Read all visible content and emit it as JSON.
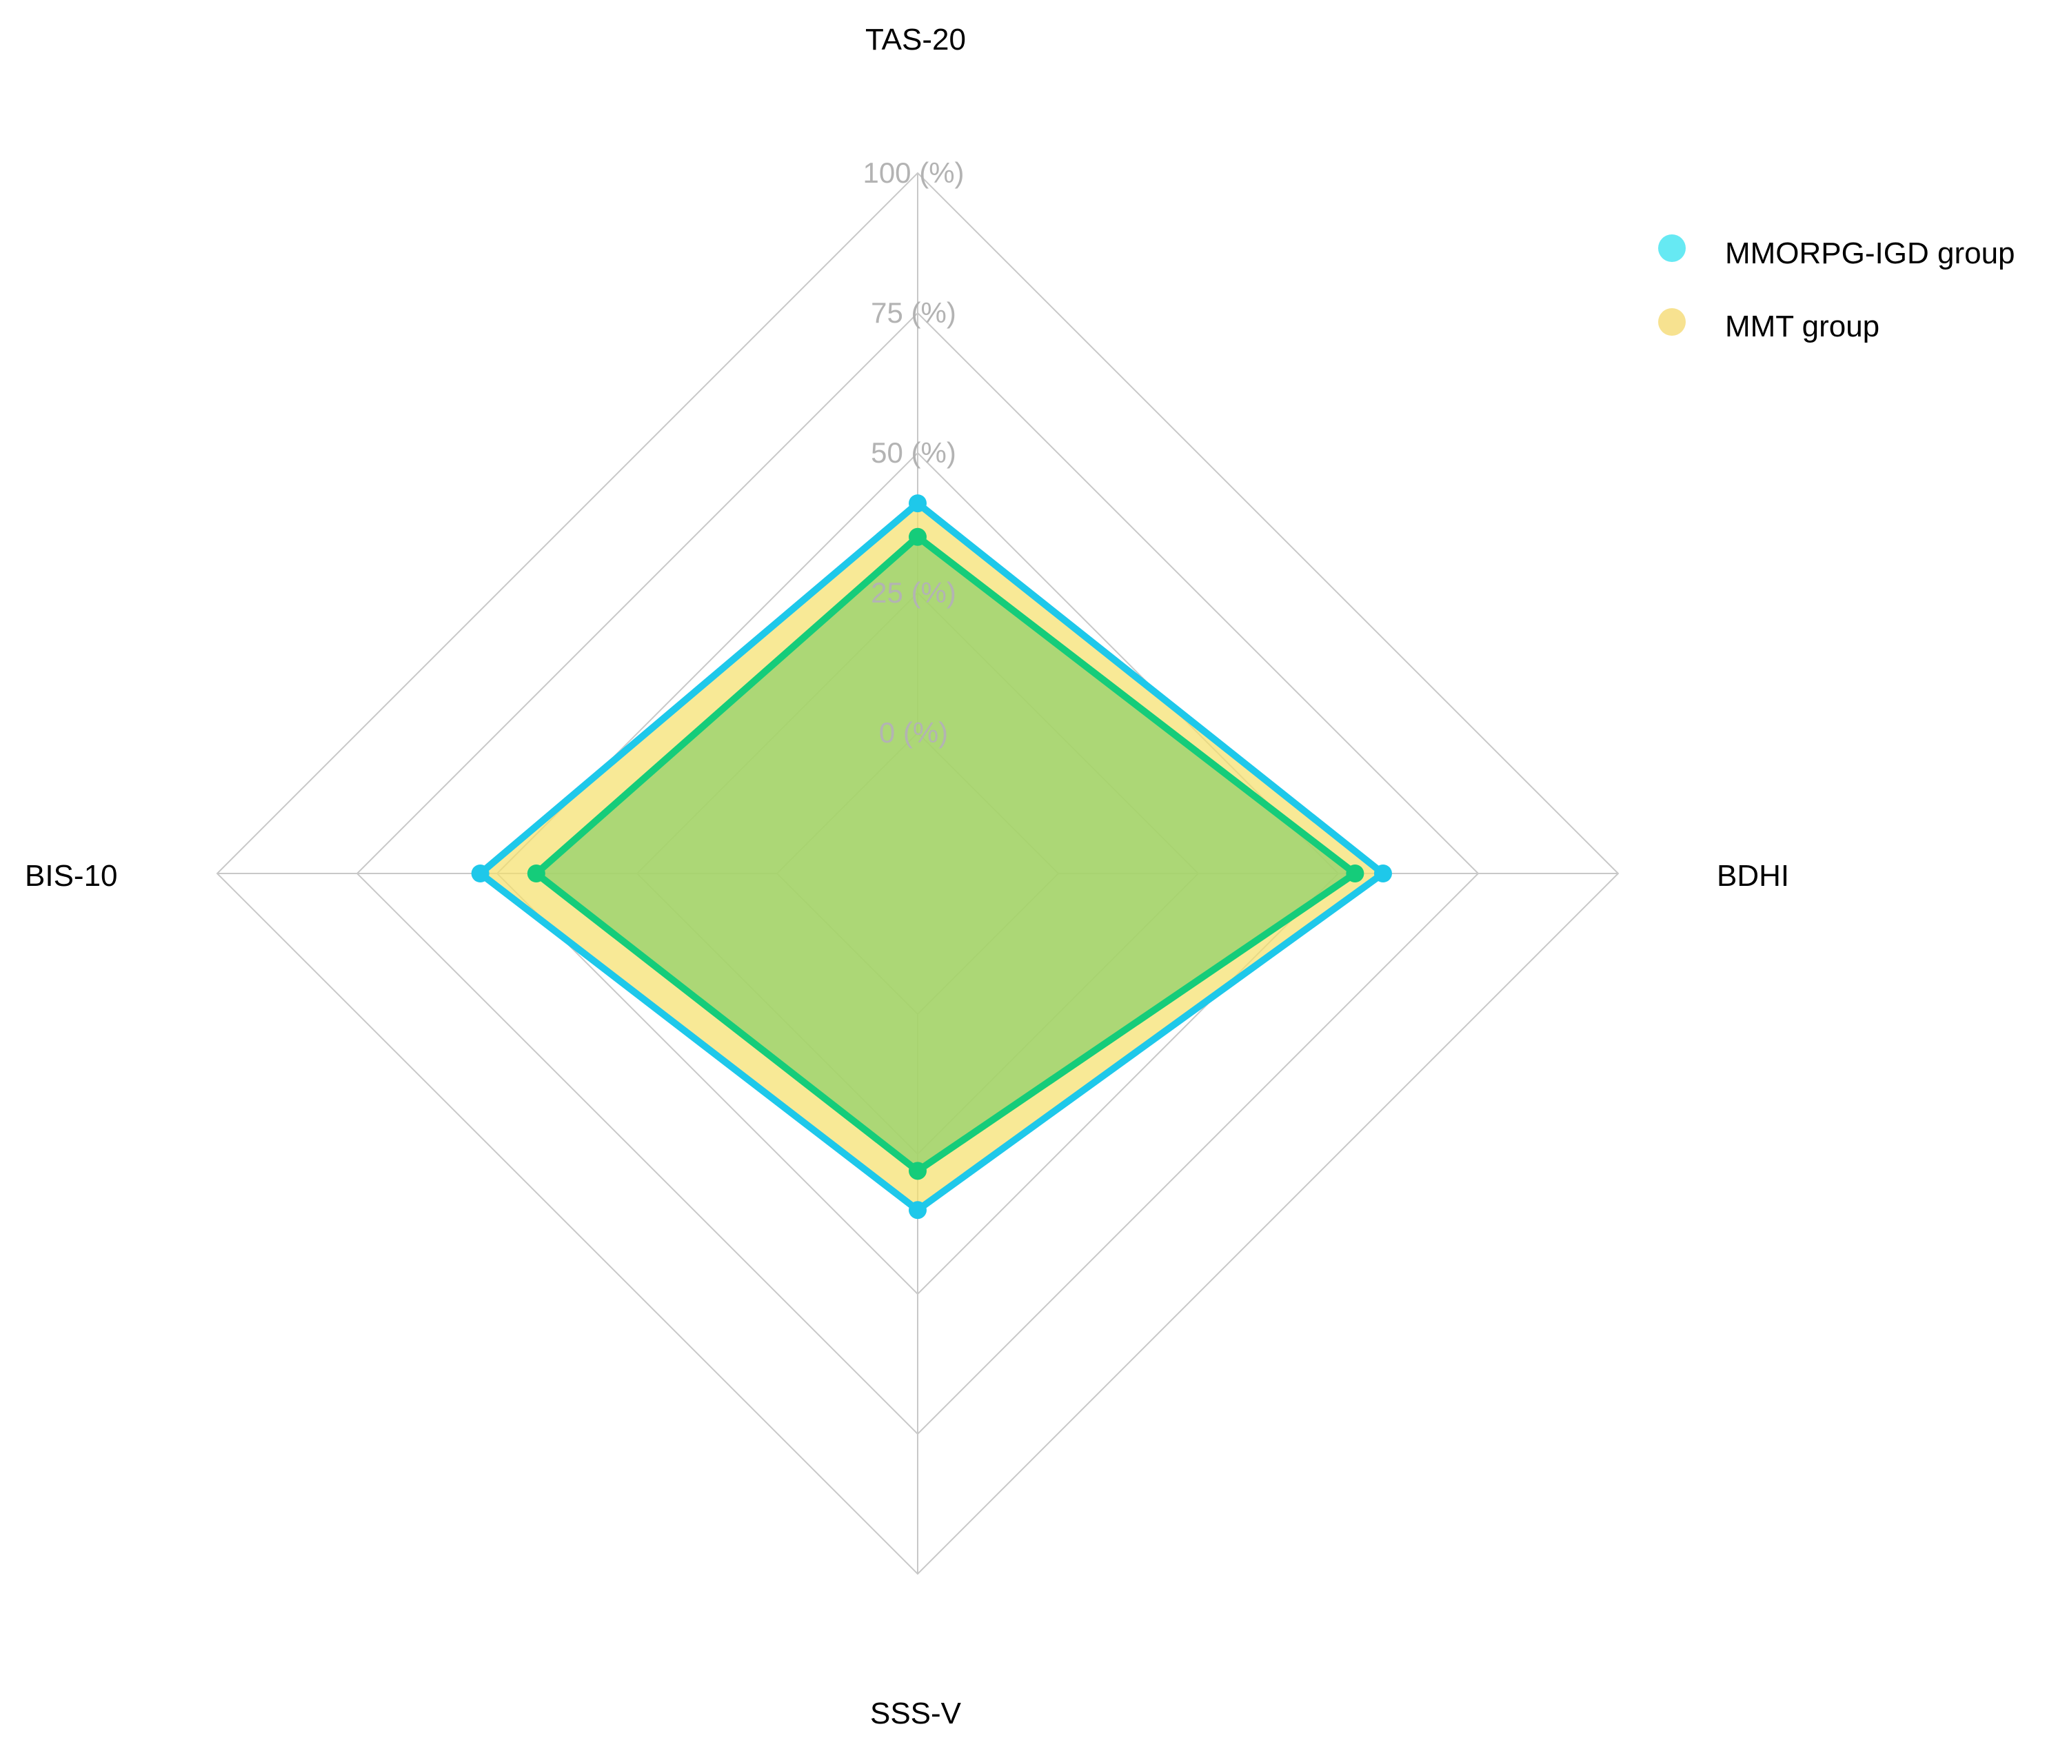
{
  "chart_data": {
    "type": "radar",
    "title": "",
    "axes": [
      "TAS-20",
      "BDHI",
      "SSS-V",
      "BIS-10"
    ],
    "ticks": [
      "0 (%)",
      "25 (%)",
      "50 (%)",
      "75 (%)",
      "100 (%)"
    ],
    "range": [
      0,
      100
    ],
    "legend_position": "top-right",
    "series": [
      {
        "name": "MMORPG-IGD group",
        "values": [
          41,
          58,
          35,
          53
        ],
        "line_color": "#1EC8EA",
        "fill_color": "#F5E06A",
        "fill_opacity": 0.7,
        "legend_color": "#5EE8F2"
      },
      {
        "name": "MMT group",
        "values": [
          35,
          53,
          28,
          43
        ],
        "line_color": "#15CC7A",
        "fill_color": "#8FD06A",
        "fill_opacity": 0.72,
        "legend_color": "#F7E08A"
      }
    ]
  }
}
